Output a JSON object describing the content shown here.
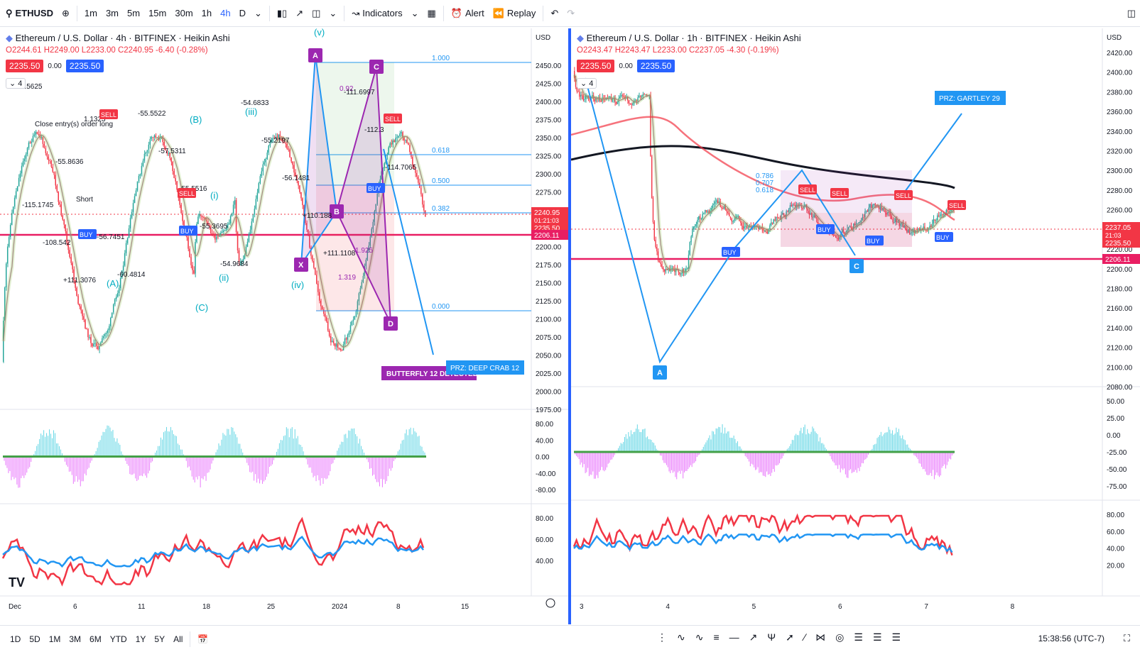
{
  "toolbar": {
    "symbol": "ETHUSD",
    "intervals": [
      "1m",
      "3m",
      "5m",
      "15m",
      "30m",
      "1h",
      "4h",
      "D"
    ],
    "active_interval": "4h",
    "indicators_label": "Indicators",
    "alert_label": "Alert",
    "replay_label": "Replay"
  },
  "left_chart": {
    "title": "Ethereum / U.S. Dollar · 4h · BITFINEX · Heikin Ashi",
    "ohlc": {
      "o": "O2244.61",
      "h": "H2249.00",
      "l": "L2233.00",
      "c": "C2240.95",
      "chg": "-6.40 (-0.28%)"
    },
    "bid": "2235.50",
    "spread": "0.00",
    "ask": "2235.50",
    "count": "4",
    "currency": "USD",
    "price_axis": [
      "2450.00",
      "2425.00",
      "2400.00",
      "2375.00",
      "2350.00",
      "2325.00",
      "2300.00",
      "2275.00",
      "2250.00",
      "2225.00",
      "2200.00",
      "2175.00",
      "2150.00",
      "2125.00",
      "2100.00",
      "2075.00",
      "2050.00",
      "2025.00",
      "2000.00",
      "1975.00"
    ],
    "price_labels": {
      "last": "2240.95",
      "countdown": "01:21:03",
      "bid": "2235.50",
      "level": "2206.11"
    },
    "osc_axis": [
      "80.00",
      "40.00",
      "0.00",
      "-40.00",
      "-80.00"
    ],
    "rsi_axis": [
      "80.00",
      "60.00",
      "40.00"
    ],
    "time_axis": [
      "Dec",
      "6",
      "11",
      "18",
      "25",
      "2024",
      "8",
      "15"
    ],
    "fib_levels": [
      "1.000",
      "0.618",
      "0.500",
      "0.382",
      "0.000"
    ],
    "waves": [
      "(A)",
      "(B)",
      "(C)",
      "(i)",
      "(ii)",
      "(iii)",
      "(iv)",
      "(v)"
    ],
    "pattern_points": [
      "X",
      "A",
      "B",
      "C",
      "D"
    ],
    "pattern_label": "BUTTERFLY 12 DETECTED",
    "prz_label": "PRZ: DEEP CRAB 12",
    "ratios": [
      "0.92",
      "1.925",
      "1.319"
    ],
    "annotations": [
      "-54.5625",
      "Close entry(s) order long",
      "-55.8636",
      "Short",
      "-56.7451",
      "-60.4814",
      "-55.5522",
      "-57.5311",
      "-55.5516",
      "-55.3695",
      "-54.9684",
      "-54.6833",
      "-55.2197",
      "-56.1481",
      "+110.188",
      "+111.1108",
      "-111.6997",
      "-112.3",
      "-114.7065",
      "-115.1745",
      "-108.542",
      "+111.3076",
      "1.1323"
    ]
  },
  "right_chart": {
    "title": "Ethereum / U.S. Dollar · 1h · BITFINEX · Heikin Ashi",
    "ohlc": {
      "o": "O2243.47",
      "h": "H2243.47",
      "l": "L2233.00",
      "c": "C2237.05",
      "chg": "-4.30 (-0.19%)"
    },
    "bid": "2235.50",
    "spread": "0.00",
    "ask": "2235.50",
    "count": "4",
    "currency": "USD",
    "price_axis": [
      "2420.00",
      "2400.00",
      "2380.00",
      "2360.00",
      "2340.00",
      "2320.00",
      "2300.00",
      "2280.00",
      "2260.00",
      "2240.00",
      "2220.00",
      "2200.00",
      "2180.00",
      "2160.00",
      "2140.00",
      "2120.00",
      "2100.00",
      "2080.00"
    ],
    "price_labels": {
      "last": "2237.05",
      "countdown": "21:03",
      "bid": "2235.50",
      "level": "2206.11"
    },
    "osc_axis": [
      "50.00",
      "25.00",
      "0.00",
      "-25.00",
      "-50.00",
      "-75.00"
    ],
    "rsi_axis": [
      "80.00",
      "60.00",
      "40.00",
      "20.00"
    ],
    "time_axis": [
      "3",
      "4",
      "5",
      "6",
      "7",
      "8"
    ],
    "fib_levels": [
      "0.786",
      "0.707",
      "0.618"
    ],
    "pattern_points": [
      "A",
      "C"
    ],
    "prz_label": "PRZ: GARTLEY 29"
  },
  "bottombar": {
    "ranges": [
      "1D",
      "5D",
      "1M",
      "3M",
      "6M",
      "YTD",
      "1Y",
      "5Y",
      "All"
    ],
    "clock": "15:38:56 (UTC-7)"
  },
  "colors": {
    "accent": "#2962ff",
    "bull": "#26a69a",
    "bear": "#f23645",
    "level_line": "#e91e63",
    "pattern": "#9c27b0"
  }
}
